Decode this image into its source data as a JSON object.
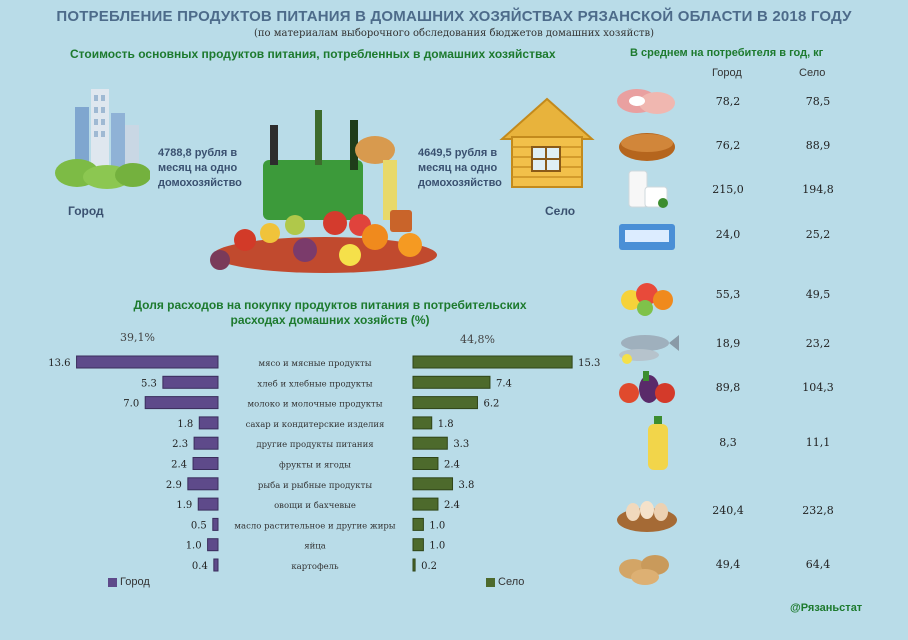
{
  "title": "ПОТРЕБЛЕНИЕ ПРОДУКТОВ ПИТАНИЯ В ДОМАШНИХ ХОЗЯЙСТВАХ РЯЗАНСКОЙ ОБЛАСТИ В 2018 ГОДУ",
  "subtitle": "(по материалам выборочного обследования бюджетов домашних хозяйств)",
  "cost": {
    "title": "Стоимость основных продуктов питания, потребленных в домашних хозяйствах",
    "city_text": [
      "4788,8 рубля в",
      "месяц на одно",
      "домохозяйство"
    ],
    "city_label": "Город",
    "village_text": [
      "4649,5 рубля в",
      "месяц на одно",
      "домохозяйство"
    ],
    "village_label": "Село"
  },
  "per_consumer": {
    "title": "В среднем на потребителя в год, кг",
    "col_city": "Город",
    "col_village": "Село",
    "rows": [
      {
        "icon": "meat-icon",
        "city": "78,2",
        "village": "78,5"
      },
      {
        "icon": "bread-icon",
        "city": "76,2",
        "village": "88,9"
      },
      {
        "icon": "milk-icon",
        "city": "215,0",
        "village": "194,8"
      },
      {
        "icon": "sugar-icon",
        "city": "24,0",
        "village": "25,2"
      },
      {
        "icon": "fruit-icon",
        "city": "55,3",
        "village": "49,5"
      },
      {
        "icon": "fish-icon",
        "city": "18,9",
        "village": "23,2"
      },
      {
        "icon": "vegetables-icon",
        "city": "89,8",
        "village": "104,3"
      },
      {
        "icon": "oil-bottle-icon",
        "city": "8,3",
        "village": "11,1"
      },
      {
        "icon": "eggs-icon",
        "city": "240,4",
        "village": "232,8"
      },
      {
        "icon": "potato-icon",
        "city": "49,4",
        "village": "64,4"
      }
    ]
  },
  "chart_data": {
    "type": "bar",
    "title": "Доля расходов на покупку продуктов питания в потребительских расходах домашних хозяйств (%)",
    "categories": [
      "мясо и мясные продукты",
      "хлеб и хлебные продукты",
      "молоко и молочные продукты",
      "сахар и кондитерские изделия",
      "другие продукты питания",
      "фрукты и ягоды",
      "рыба и рыбные продукты",
      "овощи и бахчевые",
      "масло растительное и другие жиры",
      "яйца",
      "картофель"
    ],
    "series": [
      {
        "name": "Город",
        "total": "39,1%",
        "color": "#5e4a8a",
        "values": [
          13.6,
          5.3,
          7.0,
          1.8,
          2.3,
          2.4,
          2.9,
          1.9,
          0.5,
          1.0,
          0.4
        ],
        "labels": [
          "13.6",
          "5.3",
          "7.0",
          "1.8",
          "2.3",
          "2.4",
          "2.9",
          "1.9",
          "0.5",
          "1.0",
          "0.4"
        ]
      },
      {
        "name": "Село",
        "total": "44,8%",
        "color": "#4d6a2c",
        "values": [
          15.3,
          7.4,
          6.2,
          1.8,
          3.3,
          2.4,
          3.8,
          2.4,
          1.0,
          1.0,
          0.2
        ],
        "labels": [
          "15.3",
          "7.4",
          "6.2",
          "1.8",
          "3.3",
          "2.4",
          "3.8",
          "2.4",
          "1.0",
          "1.0",
          "0.2"
        ]
      }
    ]
  },
  "credit": "@Рязаньстат"
}
